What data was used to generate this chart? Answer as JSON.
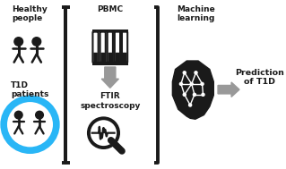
{
  "bg_color": "#ffffff",
  "dark_color": "#1a1a1a",
  "gray_color": "#999999",
  "blue_color": "#29b6f6",
  "healthy_people_label": "Healthy\npeople",
  "t1d_label": "T1D\npatients",
  "pbmc_label": "PBMC",
  "ftir_label": "FTIR\nspectroscopy",
  "ml_label": "Machine\nlearning",
  "pred_label": "Prediction\nof T1D",
  "fig_width": 3.19,
  "fig_height": 1.89,
  "dpi": 100,
  "xlim": [
    0,
    10
  ],
  "ylim": [
    0,
    6
  ]
}
